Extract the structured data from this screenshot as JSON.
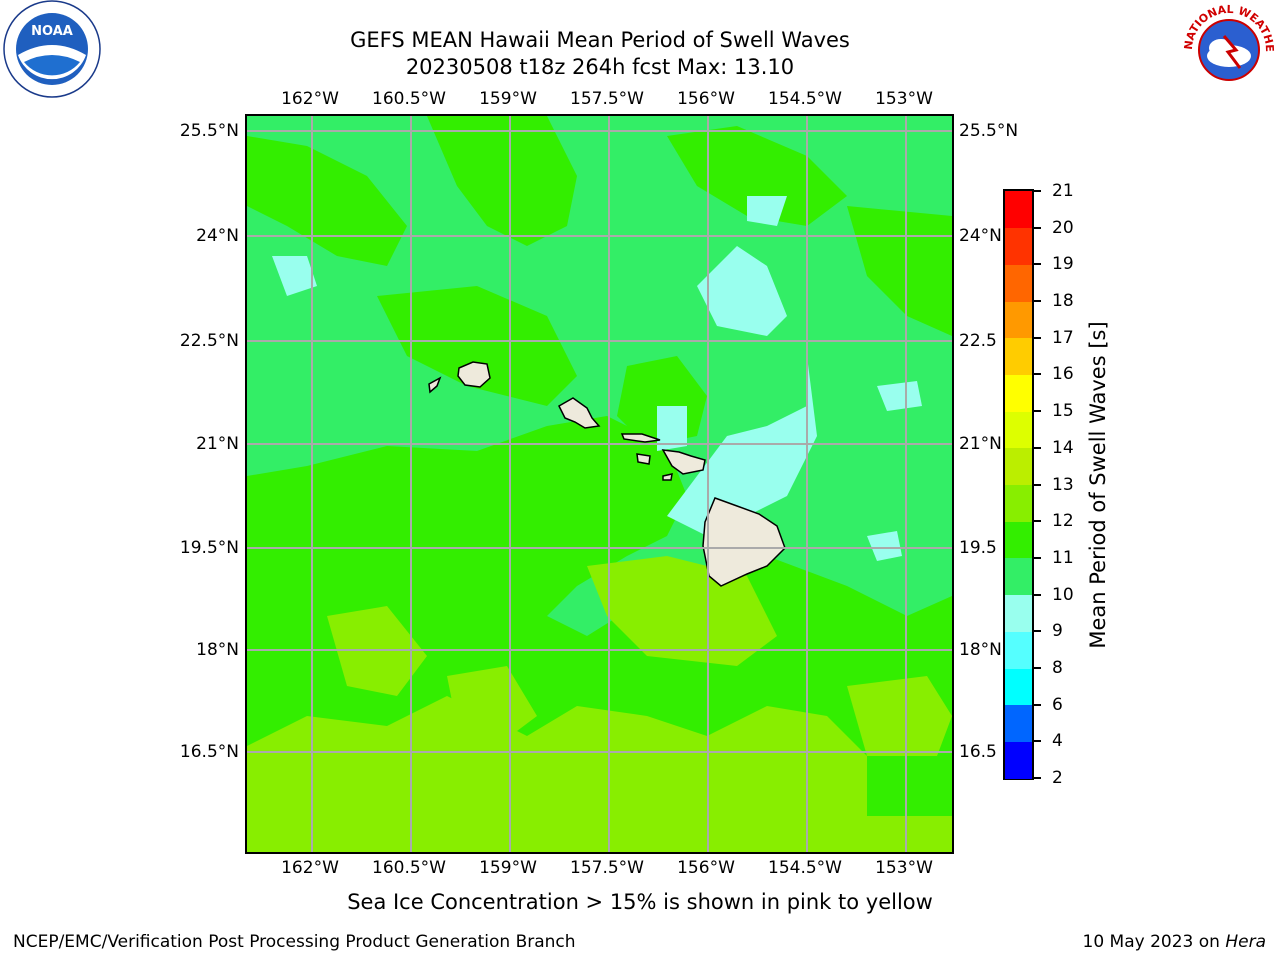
{
  "header": {
    "title_line1": "GEFS MEAN Hawaii Mean Period of Swell Waves",
    "title_line2": "20230508 t18z 264h fcst   Max: 13.10"
  },
  "map": {
    "lon_labels": [
      "162°W",
      "160.5°W",
      "159°W",
      "157.5°W",
      "156°W",
      "154.5°W",
      "153°W"
    ],
    "lat_labels_left": [
      "25.5°N",
      "24°N",
      "22.5°N",
      "21°N",
      "19.5°N",
      "18°N",
      "16.5°N"
    ],
    "lat_labels_right": [
      "25.5°N",
      "24°N",
      "22.5",
      "21°N",
      "19.5",
      "18°N",
      "16.5"
    ],
    "background_field_value": 11
  },
  "colorbar": {
    "title": "Mean Period of Swell Waves [s]",
    "labels": [
      "2",
      "4",
      "6",
      "8",
      "9",
      "10",
      "11",
      "12",
      "13",
      "14",
      "15",
      "16",
      "17",
      "18",
      "19",
      "20",
      "21"
    ],
    "colors": [
      "#0000ff",
      "#0066ff",
      "#00ffff",
      "#55ffff",
      "#99ffee",
      "#33ee66",
      "#33ee00",
      "#88ee00",
      "#bbee00",
      "#ddff00",
      "#ffff00",
      "#ffcc00",
      "#ff9900",
      "#ff6600",
      "#ff3300",
      "#ff0000"
    ]
  },
  "footer": {
    "note": "Sea Ice Concentration > 15% is shown in pink to yellow",
    "credit": "NCEP/EMC/Verification Post Processing Product Generation Branch",
    "date": "10 May 2023 on ",
    "host": "Hera"
  },
  "logos": {
    "noaa_text": "NOAA",
    "nws_text": "NATIONAL WEATHER SERVICE"
  }
}
